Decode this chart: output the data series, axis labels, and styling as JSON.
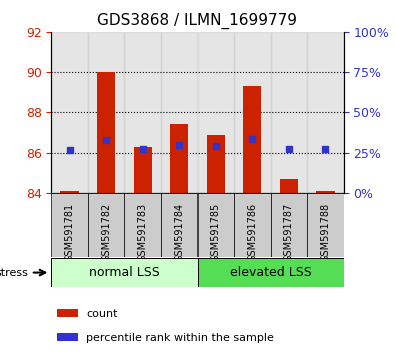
{
  "title": "GDS3868 / ILMN_1699779",
  "samples": [
    "GSM591781",
    "GSM591782",
    "GSM591783",
    "GSM591784",
    "GSM591785",
    "GSM591786",
    "GSM591787",
    "GSM591788"
  ],
  "bar_bottom": 84,
  "bar_tops": [
    84.1,
    90.0,
    86.3,
    87.4,
    86.9,
    89.3,
    84.7,
    84.1
  ],
  "percentile_ranks": [
    26.5,
    33.0,
    27.5,
    29.5,
    29.0,
    33.5,
    27.0,
    27.0
  ],
  "ylim_left": [
    84,
    92
  ],
  "ylim_right": [
    0,
    100
  ],
  "yticks_left": [
    84,
    86,
    88,
    90,
    92
  ],
  "yticks_right": [
    0,
    25,
    50,
    75,
    100
  ],
  "group1_label": "normal LSS",
  "group2_label": "elevated LSS",
  "group1_indices": [
    0,
    1,
    2,
    3
  ],
  "group2_indices": [
    4,
    5,
    6,
    7
  ],
  "stress_label": "stress",
  "bar_color": "#cc2200",
  "dot_color": "#3333cc",
  "left_tick_color": "#cc2200",
  "right_tick_color": "#3333cc",
  "group1_bg": "#ccffcc",
  "group2_bg": "#55dd55",
  "sample_bg": "#cccccc",
  "legend_count": "count",
  "legend_pct": "percentile rank within the sample",
  "grid_yvals": [
    86,
    88,
    90
  ]
}
